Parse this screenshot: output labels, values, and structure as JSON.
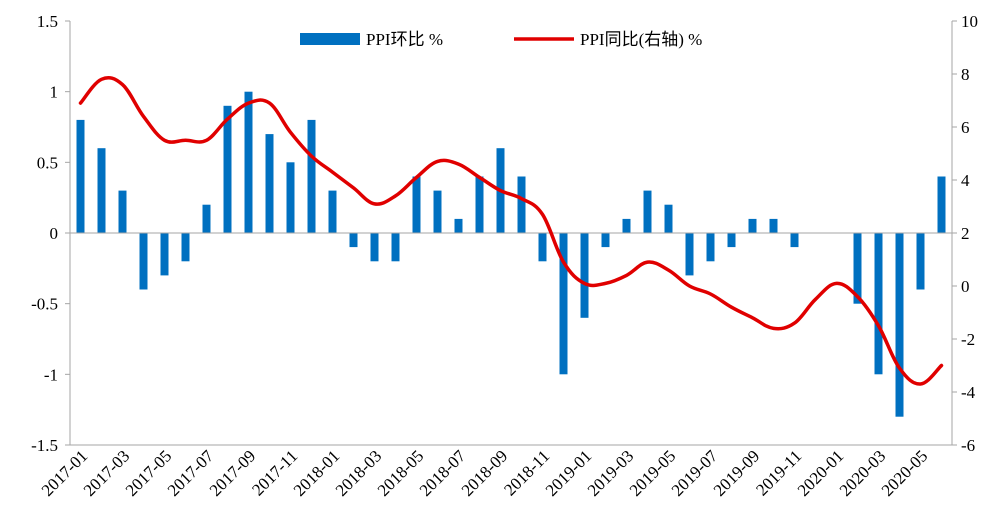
{
  "chart_data": {
    "type": "bar",
    "categories": [
      "2017-01",
      "2017-02",
      "2017-03",
      "2017-04",
      "2017-05",
      "2017-06",
      "2017-07",
      "2017-08",
      "2017-09",
      "2017-10",
      "2017-11",
      "2017-12",
      "2018-01",
      "2018-02",
      "2018-03",
      "2018-04",
      "2018-05",
      "2018-06",
      "2018-07",
      "2018-08",
      "2018-09",
      "2018-10",
      "2018-11",
      "2018-12",
      "2019-01",
      "2019-02",
      "2019-03",
      "2019-04",
      "2019-05",
      "2019-06",
      "2019-07",
      "2019-08",
      "2019-09",
      "2019-10",
      "2019-11",
      "2019-12",
      "2020-01",
      "2020-02",
      "2020-03",
      "2020-04",
      "2020-05",
      "2020-06"
    ],
    "x_tick_labels": [
      "2017-01",
      "2017-03",
      "2017-05",
      "2017-07",
      "2017-09",
      "2017-11",
      "2018-01",
      "2018-03",
      "2018-05",
      "2018-07",
      "2018-09",
      "2018-11",
      "2019-01",
      "2019-03",
      "2019-05",
      "2019-07",
      "2019-09",
      "2019-11",
      "2020-01",
      "2020-03",
      "2020-05"
    ],
    "series": [
      {
        "name": "PPI环比 %",
        "type": "bar",
        "axis": "left",
        "color": "#0070c0",
        "values": [
          0.8,
          0.6,
          0.3,
          -0.4,
          -0.3,
          -0.2,
          0.2,
          0.9,
          1.0,
          0.7,
          0.5,
          0.8,
          0.3,
          -0.1,
          -0.2,
          -0.2,
          0.4,
          0.3,
          0.1,
          0.4,
          0.6,
          0.4,
          -0.2,
          -1.0,
          -0.6,
          -0.1,
          0.1,
          0.3,
          0.2,
          -0.3,
          -0.2,
          -0.1,
          0.1,
          0.1,
          -0.1,
          0.0,
          0.0,
          -0.5,
          -1.0,
          -1.3,
          -0.4,
          0.4
        ]
      },
      {
        "name": "PPI同比(右轴) %",
        "type": "line",
        "axis": "right",
        "color": "#e00000",
        "values": [
          6.9,
          7.8,
          7.6,
          6.4,
          5.5,
          5.5,
          5.5,
          6.3,
          6.9,
          6.9,
          5.8,
          4.9,
          4.3,
          3.7,
          3.1,
          3.4,
          4.1,
          4.7,
          4.6,
          4.1,
          3.6,
          3.3,
          2.7,
          0.9,
          0.1,
          0.1,
          0.4,
          0.9,
          0.6,
          0.0,
          -0.3,
          -0.8,
          -1.2,
          -1.6,
          -1.4,
          -0.5,
          0.1,
          -0.4,
          -1.5,
          -3.1,
          -3.7,
          -3.0
        ]
      }
    ],
    "y_left": {
      "ylim": [
        -1.5,
        1.5
      ],
      "ticks": [
        "1.5",
        "1",
        "0.5",
        "0",
        "-0.5",
        "-1",
        "-1.5"
      ],
      "tick_values": [
        1.5,
        1,
        0.5,
        0,
        -0.5,
        -1,
        -1.5
      ]
    },
    "y_right": {
      "ylim": [
        -6,
        10
      ],
      "ticks": [
        "10",
        "8",
        "6",
        "4",
        "2",
        "0",
        "-2",
        "-4",
        "-6"
      ],
      "tick_values": [
        10,
        8,
        6,
        4,
        2,
        0,
        -2,
        -4,
        -6
      ]
    },
    "legend_placement": "top-center",
    "grid": false
  }
}
